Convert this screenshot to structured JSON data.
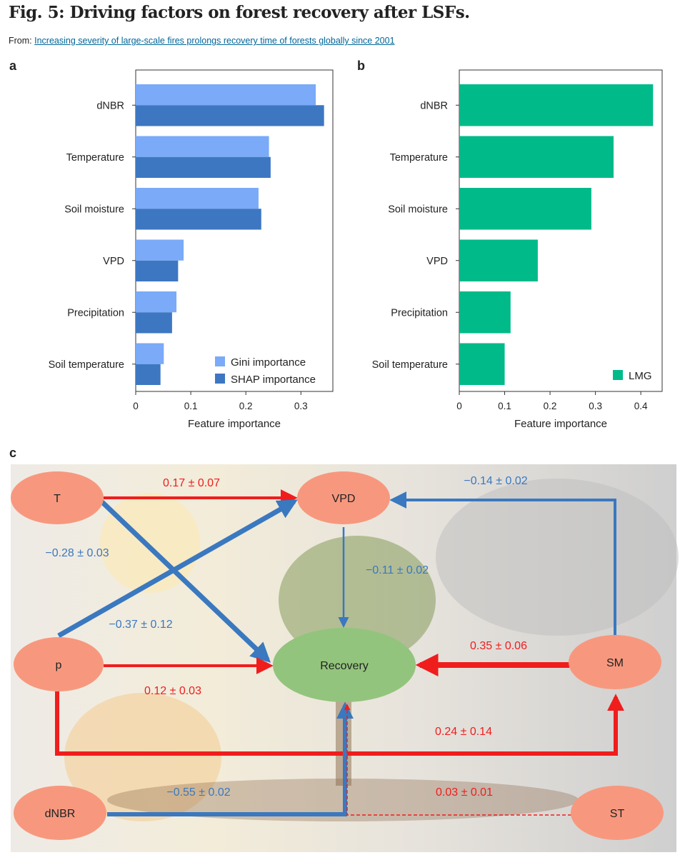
{
  "title": "Fig. 5: Driving factors on forest recovery after LSFs.",
  "from_prefix": "From:",
  "from_link": "Increasing severity of large-scale fires prolongs recovery time of forests globally since 2001",
  "panel_labels": [
    "a",
    "b",
    "c"
  ],
  "chart_data": [
    {
      "type": "bar",
      "orientation": "horizontal",
      "panel": "a",
      "categories": [
        "dNBR",
        "Temperature",
        "Soil moisture",
        "VPD",
        "Precipitation",
        "Soil temperature"
      ],
      "series": [
        {
          "name": "Gini importance",
          "color": "#7aaaf8",
          "values": [
            0.327,
            0.242,
            0.223,
            0.087,
            0.074,
            0.051
          ]
        },
        {
          "name": "SHAP importance",
          "color": "#3d77c2",
          "values": [
            0.342,
            0.245,
            0.228,
            0.077,
            0.066,
            0.045
          ]
        }
      ],
      "xlabel": "Feature importance",
      "xlim": [
        0,
        0.358
      ],
      "xticks": [
        "0",
        "0.1",
        "0.2",
        "0.3"
      ],
      "legend": "bottom-right"
    },
    {
      "type": "bar",
      "orientation": "horizontal",
      "panel": "b",
      "categories": [
        "dNBR",
        "Temperature",
        "Soil moisture",
        "VPD",
        "Precipitation",
        "Soil temperature"
      ],
      "series": [
        {
          "name": "LMG",
          "color": "#00ba8a",
          "values": [
            0.427,
            0.34,
            0.291,
            0.173,
            0.113,
            0.1
          ]
        }
      ],
      "xlabel": "Feature importance",
      "xlim": [
        0,
        0.447
      ],
      "xticks": [
        "0",
        "0.1",
        "0.2",
        "0.3",
        "0.4"
      ],
      "legend": "bottom-right"
    }
  ],
  "diagram": {
    "nodes": {
      "T": "T",
      "VPD": "VPD",
      "Recovery": "Recovery",
      "p": "p",
      "SM": "SM",
      "dNBR": "dNBR",
      "ST": "ST"
    },
    "edges": [
      {
        "from": "T",
        "to": "VPD",
        "label": "0.17 ± 0.07",
        "sign": "positive"
      },
      {
        "from": "T",
        "to": "Recovery",
        "label": "−0.28 ± 0.03",
        "sign": "negative"
      },
      {
        "from": "p",
        "to": "VPD",
        "label": "−0.37 ± 0.12",
        "sign": "negative"
      },
      {
        "from": "VPD",
        "to": "Recovery",
        "label": "−0.11 ± 0.02",
        "sign": "negative"
      },
      {
        "from": "p",
        "to": "Recovery",
        "label": "0.12 ± 0.03",
        "sign": "positive"
      },
      {
        "from": "SM",
        "to": "Recovery",
        "label": "0.35 ± 0.06",
        "sign": "positive"
      },
      {
        "from": "SM",
        "to": "VPD",
        "label": "−0.14 ± 0.02",
        "sign": "negative"
      },
      {
        "from": "p",
        "to": "SM",
        "label": "0.24 ± 0.14",
        "sign": "positive"
      },
      {
        "from": "dNBR",
        "to": "Recovery",
        "label": "−0.55 ± 0.02",
        "sign": "negative"
      },
      {
        "from": "ST",
        "to": "Recovery",
        "label": "0.03 ± 0.01",
        "sign": "positive"
      }
    ]
  },
  "colors": {
    "positive": "#f01d1d",
    "negative": "#3a78bf",
    "node": "#f7987e",
    "recovery": "#93c47d"
  }
}
